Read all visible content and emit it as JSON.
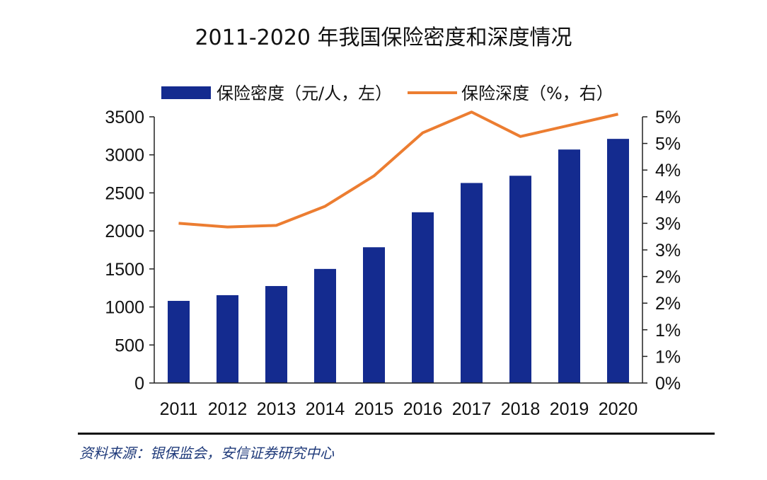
{
  "chart_data": {
    "type": "bar",
    "title": "2011-2020 年我国保险密度和深度情况",
    "categories": [
      "2011",
      "2012",
      "2013",
      "2014",
      "2015",
      "2016",
      "2017",
      "2018",
      "2019",
      "2020"
    ],
    "series": [
      {
        "name": "保险密度（元/人，左）",
        "type": "bar",
        "axis": "left",
        "values": [
          1080,
          1155,
          1275,
          1500,
          1785,
          2245,
          2630,
          2725,
          3070,
          3210
        ]
      },
      {
        "name": "保险深度（%，右）",
        "type": "line",
        "axis": "right",
        "values": [
          3.0,
          2.93,
          2.96,
          3.32,
          3.89,
          4.7,
          5.09,
          4.63,
          4.84,
          5.05
        ]
      }
    ],
    "left_axis": {
      "min": 0,
      "max": 3500,
      "ticks": [
        0,
        500,
        1000,
        1500,
        2000,
        2500,
        3000,
        3500
      ]
    },
    "right_axis": {
      "min": 0,
      "max": 5,
      "tick_labels": [
        "0%",
        "1%",
        "1%",
        "2%",
        "2%",
        "3%",
        "3%",
        "4%",
        "4%",
        "5%",
        "5%"
      ]
    },
    "legend_position": "top",
    "grid": false,
    "colors": {
      "bar": "#142b8f",
      "line": "#ec7d31",
      "axis": "#222222",
      "text": "#111111"
    }
  },
  "source_note": "资料来源：银保监会，安信证券研究中心"
}
